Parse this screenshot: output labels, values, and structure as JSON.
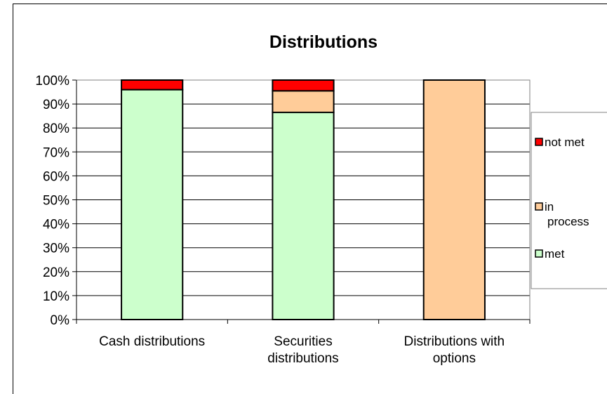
{
  "chart_data": {
    "type": "bar",
    "stacked": true,
    "title": "Distributions",
    "xlabel": "",
    "ylabel": "",
    "ylim": [
      0,
      100
    ],
    "y_ticks": [
      "0%",
      "10%",
      "20%",
      "30%",
      "40%",
      "50%",
      "60%",
      "70%",
      "80%",
      "90%",
      "100%"
    ],
    "categories": [
      [
        "Cash distributions"
      ],
      [
        "Securities",
        "distributions"
      ],
      [
        "Distributions with",
        "options"
      ]
    ],
    "series": [
      {
        "name": "met",
        "color": "#ccffcc",
        "values": [
          96,
          86.5,
          0
        ]
      },
      {
        "name": "in process",
        "color": "#ffcc99",
        "values": [
          0,
          9,
          100
        ]
      },
      {
        "name": "not met",
        "color": "#ff0000",
        "values": [
          4,
          4.5,
          0
        ]
      }
    ],
    "legend": {
      "position": "right",
      "order": [
        "not met",
        "in process",
        "met"
      ],
      "labels": [
        [
          "not met"
        ],
        [
          "in",
          "process"
        ],
        [
          "met"
        ]
      ]
    },
    "grid": true
  }
}
